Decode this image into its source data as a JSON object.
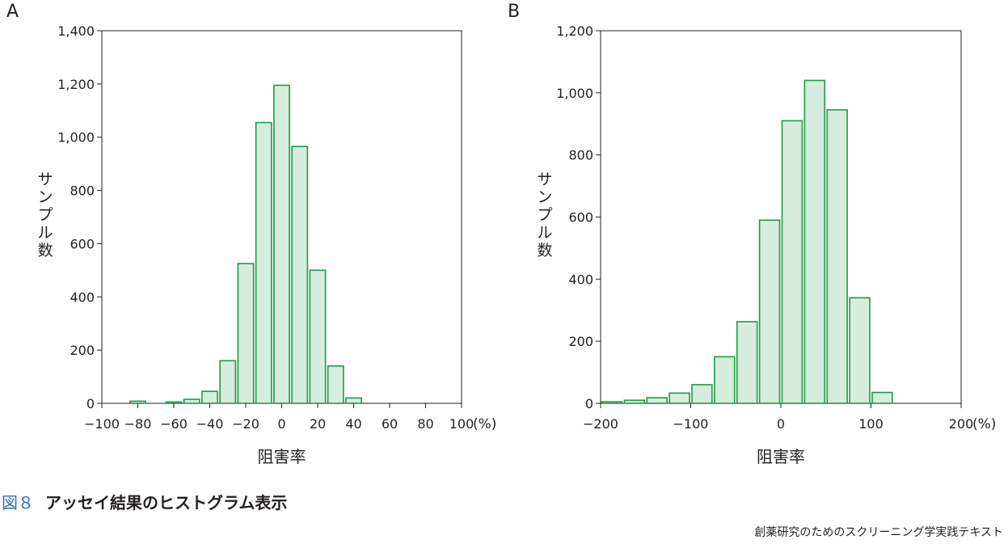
{
  "colors": {
    "bar_fill": "#d6ecdc",
    "bar_stroke": "#1f9a4b",
    "axis": "#231f20",
    "caption_accent": "#2e6fb7"
  },
  "chart_data": [
    {
      "type": "bar",
      "panel_label": "A",
      "xlabel": "阻害率",
      "ylabel": "サンプル数",
      "x_unit": "(%)",
      "xlim": [
        -100,
        100
      ],
      "ylim": [
        0,
        1400
      ],
      "xticks": [
        -100,
        -80,
        -60,
        -40,
        -20,
        0,
        20,
        40,
        60,
        80,
        100
      ],
      "xtick_labels": [
        "−100",
        "−80",
        "−60",
        "−40",
        "−20",
        "0",
        "20",
        "40",
        "60",
        "80",
        "100"
      ],
      "yticks": [
        0,
        200,
        400,
        600,
        800,
        1000,
        1200,
        1400
      ],
      "ytick_labels": [
        "0",
        "200",
        "400",
        "600",
        "800",
        "1,000",
        "1,200",
        "1,400"
      ],
      "bin_width": 10,
      "x": [
        -80,
        -60,
        -50,
        -40,
        -30,
        -20,
        -10,
        0,
        10,
        20,
        30,
        40
      ],
      "values": [
        8,
        5,
        15,
        45,
        160,
        525,
        1055,
        1195,
        965,
        500,
        140,
        20
      ],
      "grid": false
    },
    {
      "type": "bar",
      "panel_label": "B",
      "xlabel": "阻害率",
      "ylabel": "サンプル数",
      "x_unit": "(%)",
      "xlim": [
        -200,
        200
      ],
      "ylim": [
        0,
        1200
      ],
      "xticks": [
        -200,
        -100,
        0,
        100,
        200
      ],
      "xtick_labels": [
        "−200",
        "−100",
        "0",
        "100",
        "200"
      ],
      "yticks": [
        0,
        200,
        400,
        600,
        800,
        1000,
        1200
      ],
      "ytick_labels": [
        "0",
        "200",
        "400",
        "600",
        "800",
        "1,000",
        "1,200"
      ],
      "bin_width": 25,
      "x": [
        -187.5,
        -162.5,
        -137.5,
        -112.5,
        -87.5,
        -62.5,
        -37.5,
        -12.5,
        12.5,
        37.5,
        62.5,
        87.5,
        112.5
      ],
      "values": [
        5,
        10,
        18,
        33,
        60,
        150,
        263,
        590,
        910,
        1040,
        945,
        340,
        35
      ],
      "grid": false
    }
  ],
  "caption": {
    "number": "図８",
    "title": "アッセイ結果のヒストグラム表示"
  },
  "footer": "創薬研究のためのスクリーニング学実践テキスト"
}
